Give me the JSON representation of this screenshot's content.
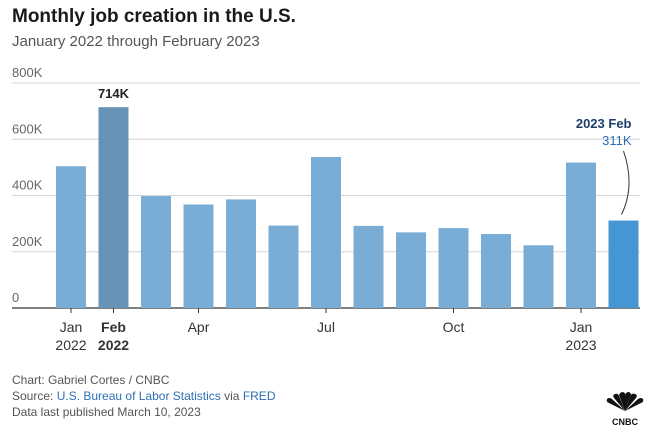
{
  "header": {
    "title": "Monthly job creation in the U.S.",
    "subtitle": "January 2022 through February 2023"
  },
  "chart_data": {
    "type": "bar",
    "categories": [
      "Jan 2022",
      "Feb 2022",
      "Mar 2022",
      "Apr 2022",
      "May 2022",
      "Jun 2022",
      "Jul 2022",
      "Aug 2022",
      "Sep 2022",
      "Oct 2022",
      "Nov 2022",
      "Dec 2022",
      "Jan 2023",
      "Feb 2023"
    ],
    "values": [
      504,
      714,
      398,
      368,
      386,
      293,
      537,
      292,
      269,
      284,
      263,
      223,
      517,
      311
    ],
    "unit": "K",
    "ylim": [
      0,
      800
    ],
    "yticks": [
      0,
      200,
      400,
      600,
      800
    ],
    "ytick_labels": [
      "0",
      "200K",
      "400K",
      "600K",
      "800K"
    ],
    "xticks": [
      {
        "index": 0,
        "line1": "Jan",
        "line2": "2022",
        "bold": false
      },
      {
        "index": 1,
        "line1": "Feb",
        "line2": "2022",
        "bold": true
      },
      {
        "index": 3,
        "line1": "Apr",
        "line2": "",
        "bold": false
      },
      {
        "index": 6,
        "line1": "Jul",
        "line2": "",
        "bold": false
      },
      {
        "index": 9,
        "line1": "Oct",
        "line2": "",
        "bold": false
      },
      {
        "index": 12,
        "line1": "Jan",
        "line2": "2023",
        "bold": false
      }
    ],
    "annotations": [
      {
        "index": 1,
        "label": "714K"
      },
      {
        "index": 13,
        "title": "2023 Feb",
        "label": "311K"
      }
    ],
    "grid": true,
    "colors": {
      "default": "#7aadd6",
      "highlight_max": "#6694b9",
      "highlight_latest": "#4596d2",
      "annotation_title": "#1f3f6b",
      "annotation_label": "#2f6fb5"
    }
  },
  "footer": {
    "credit": "Chart: Gabriel Cortes / CNBC",
    "source_prefix": "Source: ",
    "source_link": "U.S. Bureau of Labor Statistics",
    "source_mid": " via ",
    "source_fred": "FRED",
    "published": "Data last published March 10, 2023"
  },
  "logo": {
    "icon": "peacock-icon",
    "text": "CNBC"
  }
}
